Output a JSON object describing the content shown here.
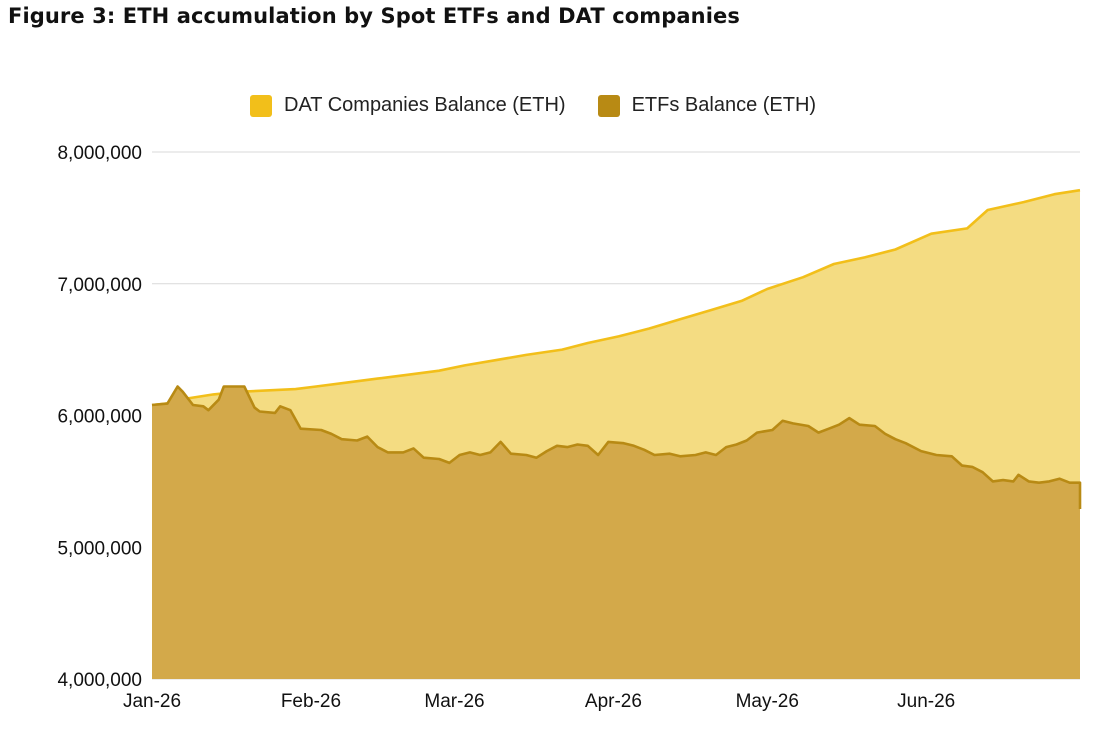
{
  "figure": {
    "title": "Figure 3: ETH accumulation by Spot ETFs and DAT companies"
  },
  "legend": [
    {
      "label": "DAT Companies Balance (ETH)",
      "color": "#F2BF1A",
      "fill": "#F4DC82"
    },
    {
      "label": "ETFs Balance (ETH)",
      "color": "#B88A14",
      "fill": "#D3A94A"
    }
  ],
  "chart_data": {
    "type": "area",
    "title": "Figure 3: ETH accumulation by Spot ETFs and DAT companies",
    "xlabel": "",
    "ylabel": "",
    "x_ticks": [
      "Jan-26",
      "Feb-26",
      "Mar-26",
      "Apr-26",
      "May-26",
      "Jun-26"
    ],
    "y_ticks": [
      "4,000,000",
      "5,000,000",
      "6,000,000",
      "7,000,000",
      "8,000,000"
    ],
    "ylim": [
      4000000,
      8000000
    ],
    "xlim": [
      "2026-01-01",
      "2026-07-01"
    ],
    "grid": true,
    "legend_position": "top",
    "series": [
      {
        "name": "DAT Companies Balance (ETH)",
        "points": [
          [
            "2026-01-01",
            6080000
          ],
          [
            "2026-01-06",
            6100000
          ],
          [
            "2026-01-08",
            6130000
          ],
          [
            "2026-01-13",
            6160000
          ],
          [
            "2026-01-18",
            6180000
          ],
          [
            "2026-01-29",
            6200000
          ],
          [
            "2026-02-02",
            6220000
          ],
          [
            "2026-02-08",
            6250000
          ],
          [
            "2026-02-14",
            6280000
          ],
          [
            "2026-02-20",
            6310000
          ],
          [
            "2026-02-26",
            6340000
          ],
          [
            "2026-03-03",
            6380000
          ],
          [
            "2026-03-09",
            6420000
          ],
          [
            "2026-03-15",
            6460000
          ],
          [
            "2026-03-22",
            6500000
          ],
          [
            "2026-03-27",
            6550000
          ],
          [
            "2026-04-02",
            6600000
          ],
          [
            "2026-04-08",
            6660000
          ],
          [
            "2026-04-14",
            6730000
          ],
          [
            "2026-04-20",
            6800000
          ],
          [
            "2026-04-26",
            6870000
          ],
          [
            "2026-05-01",
            6960000
          ],
          [
            "2026-05-08",
            7050000
          ],
          [
            "2026-05-14",
            7150000
          ],
          [
            "2026-05-20",
            7200000
          ],
          [
            "2026-05-26",
            7260000
          ],
          [
            "2026-06-02",
            7380000
          ],
          [
            "2026-06-09",
            7420000
          ],
          [
            "2026-06-13",
            7560000
          ],
          [
            "2026-06-20",
            7620000
          ],
          [
            "2026-06-26",
            7680000
          ],
          [
            "2026-07-01",
            7710000
          ]
        ]
      },
      {
        "name": "ETFs Balance (ETH)",
        "points": [
          [
            "2026-01-01",
            6080000
          ],
          [
            "2026-01-04",
            6090000
          ],
          [
            "2026-01-06",
            6220000
          ],
          [
            "2026-01-07",
            6180000
          ],
          [
            "2026-01-09",
            6080000
          ],
          [
            "2026-01-11",
            6070000
          ],
          [
            "2026-01-12",
            6040000
          ],
          [
            "2026-01-14",
            6120000
          ],
          [
            "2026-01-15",
            6220000
          ],
          [
            "2026-01-19",
            6220000
          ],
          [
            "2026-01-21",
            6060000
          ],
          [
            "2026-01-22",
            6030000
          ],
          [
            "2026-01-25",
            6020000
          ],
          [
            "2026-01-26",
            6070000
          ],
          [
            "2026-01-28",
            6040000
          ],
          [
            "2026-01-30",
            5900000
          ],
          [
            "2026-02-03",
            5890000
          ],
          [
            "2026-02-05",
            5860000
          ],
          [
            "2026-02-07",
            5820000
          ],
          [
            "2026-02-10",
            5810000
          ],
          [
            "2026-02-12",
            5840000
          ],
          [
            "2026-02-14",
            5760000
          ],
          [
            "2026-02-16",
            5720000
          ],
          [
            "2026-02-19",
            5720000
          ],
          [
            "2026-02-21",
            5750000
          ],
          [
            "2026-02-23",
            5680000
          ],
          [
            "2026-02-26",
            5670000
          ],
          [
            "2026-02-28",
            5640000
          ],
          [
            "2026-03-02",
            5700000
          ],
          [
            "2026-03-04",
            5720000
          ],
          [
            "2026-03-06",
            5700000
          ],
          [
            "2026-03-08",
            5720000
          ],
          [
            "2026-03-10",
            5800000
          ],
          [
            "2026-03-12",
            5710000
          ],
          [
            "2026-03-15",
            5700000
          ],
          [
            "2026-03-17",
            5680000
          ],
          [
            "2026-03-19",
            5730000
          ],
          [
            "2026-03-21",
            5770000
          ],
          [
            "2026-03-23",
            5760000
          ],
          [
            "2026-03-25",
            5780000
          ],
          [
            "2026-03-27",
            5770000
          ],
          [
            "2026-03-29",
            5700000
          ],
          [
            "2026-03-31",
            5800000
          ],
          [
            "2026-04-03",
            5790000
          ],
          [
            "2026-04-05",
            5770000
          ],
          [
            "2026-04-07",
            5740000
          ],
          [
            "2026-04-09",
            5700000
          ],
          [
            "2026-04-12",
            5710000
          ],
          [
            "2026-04-14",
            5690000
          ],
          [
            "2026-04-17",
            5700000
          ],
          [
            "2026-04-19",
            5720000
          ],
          [
            "2026-04-21",
            5700000
          ],
          [
            "2026-04-23",
            5760000
          ],
          [
            "2026-04-25",
            5780000
          ],
          [
            "2026-04-27",
            5810000
          ],
          [
            "2026-04-29",
            5870000
          ],
          [
            "2026-05-02",
            5890000
          ],
          [
            "2026-05-04",
            5960000
          ],
          [
            "2026-05-06",
            5940000
          ],
          [
            "2026-05-09",
            5920000
          ],
          [
            "2026-05-11",
            5870000
          ],
          [
            "2026-05-13",
            5900000
          ],
          [
            "2026-05-15",
            5930000
          ],
          [
            "2026-05-17",
            5980000
          ],
          [
            "2026-05-19",
            5930000
          ],
          [
            "2026-05-22",
            5920000
          ],
          [
            "2026-05-24",
            5860000
          ],
          [
            "2026-05-26",
            5820000
          ],
          [
            "2026-05-28",
            5790000
          ],
          [
            "2026-05-31",
            5730000
          ],
          [
            "2026-06-03",
            5700000
          ],
          [
            "2026-06-06",
            5690000
          ],
          [
            "2026-06-08",
            5620000
          ],
          [
            "2026-06-10",
            5610000
          ],
          [
            "2026-06-12",
            5570000
          ],
          [
            "2026-06-14",
            5500000
          ],
          [
            "2026-06-16",
            5510000
          ],
          [
            "2026-06-18",
            5500000
          ],
          [
            "2026-06-19",
            5550000
          ],
          [
            "2026-06-21",
            5500000
          ],
          [
            "2026-06-23",
            5490000
          ],
          [
            "2026-06-25",
            5500000
          ],
          [
            "2026-06-27",
            5520000
          ],
          [
            "2026-06-29",
            5490000
          ],
          [
            "2026-06-31",
            5490000
          ],
          [
            "2026-07-01",
            5290000
          ]
        ]
      }
    ]
  }
}
